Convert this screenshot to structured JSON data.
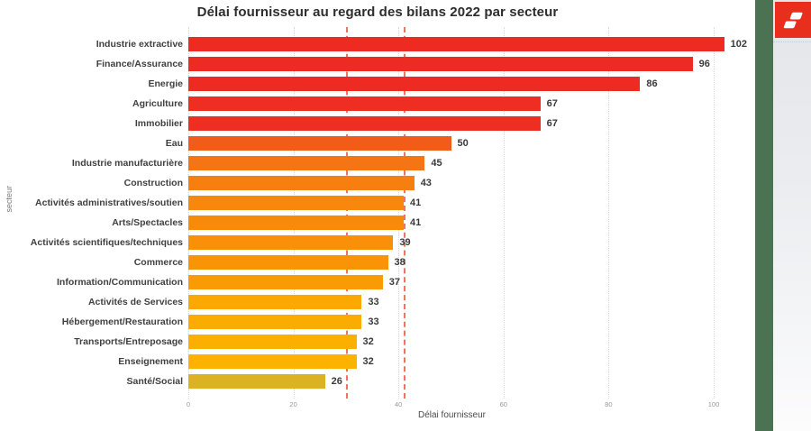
{
  "chart_data": {
    "type": "bar",
    "orientation": "horizontal",
    "title": "Délai fournisseur au regard des bilans 2022 par secteur",
    "xlabel": "Délai fournisseur",
    "ylabel": "secteur",
    "xlim": [
      0,
      107
    ],
    "x_ticks": [
      0,
      20,
      40,
      60,
      80,
      100
    ],
    "grid": "vertical-dotted",
    "categories": [
      "Industrie extractive",
      "Finance/Assurance",
      "Energie",
      "Agriculture",
      "Immobilier",
      "Eau",
      "Industrie manufacturière",
      "Construction",
      "Activités administratives/soutien",
      "Arts/Spectacles",
      "Activités scientifiques/techniques",
      "Commerce",
      "Information/Communication",
      "Activités de Services",
      "Hébergement/Restauration",
      "Transports/Entreposage",
      "Enseignement",
      "Santé/Social"
    ],
    "values": [
      102,
      96,
      86,
      67,
      67,
      50,
      45,
      43,
      41,
      41,
      39,
      38,
      37,
      33,
      33,
      32,
      32,
      26
    ],
    "bar_colors": [
      "#ee2b23",
      "#ee2b23",
      "#ee2b23",
      "#ee2d23",
      "#ee2d23",
      "#f25c1b",
      "#f57413",
      "#f67f0f",
      "#f8870b",
      "#f88a0a",
      "#f99008",
      "#f99406",
      "#fa9a04",
      "#fba802",
      "#fbac01",
      "#fbb000",
      "#fbb300",
      "#dcb224"
    ],
    "reference_lines": [
      {
        "value": 30,
        "style": "dashed",
        "color": "#f07166"
      },
      {
        "value": 41,
        "style": "dashed",
        "color": "#f07166"
      }
    ],
    "colors": {
      "gridline": "#d9d9d9",
      "value_label": "#3a3a3a",
      "category_label": "#404040",
      "tick_label": "#979797"
    }
  },
  "side_panel": {
    "strip_color": "#4b7252",
    "logo": {
      "name": "red-flag-logo",
      "background": "#e82f1e",
      "glyph_color": "#ffffff"
    }
  }
}
